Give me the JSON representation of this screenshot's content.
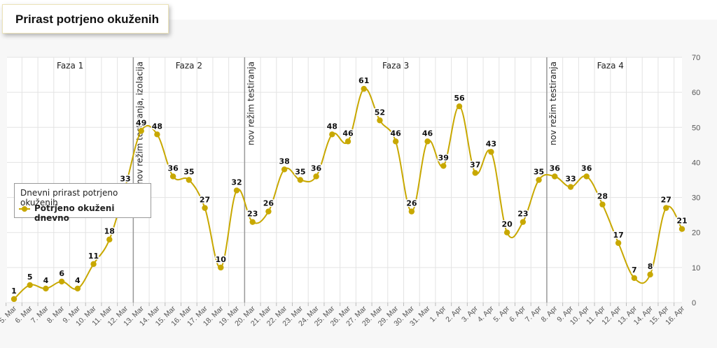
{
  "page_title": "Prirast potrjeno okuženih",
  "legend": {
    "title": "Dnevni prirast potrjeno okuženih",
    "series_label": "Potrjeno okuženi dnevno"
  },
  "colors": {
    "series": "#c8a800",
    "grid": "#e3e3e3",
    "plot_line": "#999999"
  },
  "chart_data": {
    "type": "line",
    "title": "Prirast potrjeno okuženih",
    "legend_position": "left",
    "grid": true,
    "y_axis_side": "right",
    "ylim": [
      0,
      70
    ],
    "y_ticks": [
      0,
      10,
      20,
      30,
      40,
      50,
      60,
      70
    ],
    "x": [
      "5. Mar",
      "6. Mar",
      "7. Mar",
      "8. Mar",
      "9. Mar",
      "10. Mar",
      "11. Mar",
      "12. Mar",
      "13. Mar",
      "14. Mar",
      "15. Mar",
      "16. Mar",
      "17. Mar",
      "18. Mar",
      "19. Mar",
      "20. Mar",
      "21. Mar",
      "22. Mar",
      "23. Mar",
      "24. Mar",
      "25. Mar",
      "26. Mar",
      "27. Mar",
      "28. Mar",
      "29. Mar",
      "30. Mar",
      "31. Mar",
      "1. Apr",
      "2. Apr",
      "3. Apr",
      "4. Apr",
      "5. Apr",
      "6. Apr",
      "7. Apr",
      "8. Apr",
      "9. Apr",
      "10. Apr",
      "11. Apr",
      "12. Apr",
      "13. Apr",
      "14. Apr",
      "15. Apr",
      "16. Apr"
    ],
    "series": [
      {
        "name": "Potrjeno okuženi dnevno",
        "values": [
          1,
          5,
          4,
          6,
          4,
          11,
          18,
          33,
          49,
          48,
          36,
          35,
          27,
          10,
          32,
          23,
          26,
          38,
          35,
          36,
          48,
          46,
          61,
          52,
          46,
          26,
          46,
          39,
          56,
          37,
          43,
          20,
          23,
          35,
          36,
          33,
          36,
          28,
          17,
          7,
          8,
          27,
          21
        ]
      }
    ],
    "plot_lines": [
      {
        "label": "nov režim testiranja, izolacija",
        "x": "13. Mar"
      },
      {
        "label": "nov režim testiranja",
        "x": "20. Mar"
      },
      {
        "label": "nov režim testiranja",
        "x": "8. Apr"
      }
    ],
    "bands": [
      {
        "label": "Faza 1",
        "from": "5. Mar",
        "to": "13. Mar"
      },
      {
        "label": "Faza 2",
        "from": "13. Mar",
        "to": "20. Mar"
      },
      {
        "label": "Faza 3",
        "from": "20. Mar",
        "to": "8. Apr"
      },
      {
        "label": "Faza 4",
        "from": "8. Apr",
        "to": "16. Apr"
      }
    ]
  }
}
